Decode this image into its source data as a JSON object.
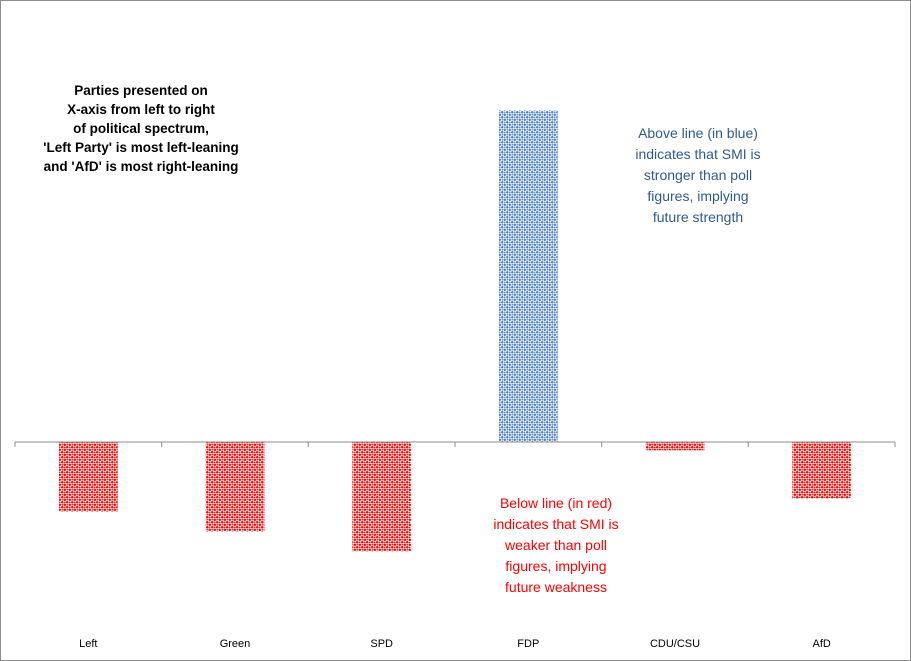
{
  "chart_data": {
    "type": "bar",
    "title": "",
    "xlabel": "",
    "ylabel": "",
    "categories": [
      "Left",
      "Green",
      "SPD",
      "FDP",
      "CDU/CSU",
      "AfD"
    ],
    "values": [
      -0.21,
      -0.27,
      -0.33,
      1.0,
      -0.025,
      -0.17
    ],
    "ylim": [
      -0.6,
      1.33
    ],
    "gridlines": false,
    "colors": {
      "positive": "#4f81bd",
      "negative": "#ff0000",
      "axis": "#8c8c8c"
    },
    "fill_pattern": "checkered dots",
    "annotations": {
      "spectrum_note": "Parties presented on\nX-axis from left to right\nof political spectrum,\n'Left Party' is most left-leaning\nand 'AfD' is most right-leaning",
      "above_note": "Above line (in blue)\nindicates that SMI is\nstronger than poll\nfigures, implying\nfuture strength",
      "below_note": "Below line (in red)\nindicates that SMI is\nweaker than poll\nfigures, implying\nfuture weakness"
    }
  }
}
